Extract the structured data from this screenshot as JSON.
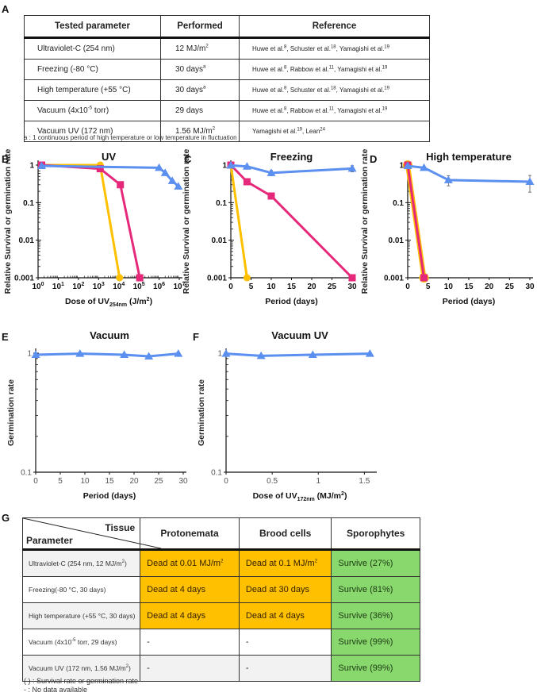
{
  "panels": {
    "A": "A",
    "B": "B",
    "C": "C",
    "D": "D",
    "E": "E",
    "F": "F",
    "G": "G"
  },
  "tableA": {
    "headers": [
      "Tested parameter",
      "Performed",
      "Reference"
    ],
    "rows": [
      {
        "param": "Ultraviolet-C  (254 nm)",
        "performed": "12 MJ/m",
        "performed_sup": "2",
        "refs": [
          [
            "Huwe et al.",
            "8"
          ],
          [
            "Schuster et al.",
            "18"
          ],
          [
            "Yamagishi et al.",
            "19"
          ]
        ]
      },
      {
        "param": "Freezing  (-80 °C)",
        "performed": "30 days",
        "performed_sup": "a",
        "refs": [
          [
            "Huwe et al.",
            "8"
          ],
          [
            "Rabbow et al.",
            "11"
          ],
          [
            "Yamagishi et al.",
            "19"
          ]
        ]
      },
      {
        "param": "High temperature  (+55 °C)",
        "performed": "30 days",
        "performed_sup": "a",
        "refs": [
          [
            "Huwe et al.",
            "8"
          ],
          [
            "Schuster et al.",
            "18"
          ],
          [
            "Yamagishi et al.",
            "19"
          ]
        ]
      },
      {
        "param_pre": "Vacuum  (4x10",
        "param_sup": "-5",
        "param_post": " torr)",
        "performed": "29 days",
        "performed_sup": "",
        "refs": [
          [
            "Huwe et al.",
            "8"
          ],
          [
            "Rabbow et al.",
            "11"
          ],
          [
            "Yamagishi et al.",
            "19"
          ]
        ]
      },
      {
        "param": "Vacuum  UV (172 nm)",
        "performed": "1.56 MJ/m",
        "performed_sup": "2",
        "refs": [
          [
            "Yamagishi et al.",
            "19"
          ],
          [
            "Lean",
            "24"
          ]
        ]
      }
    ],
    "footnote": "a :  1 continuous period of high temperature or low temperature in fluctuation"
  },
  "colors": {
    "protonemata": "#ffc000",
    "brood_cells": "#e5287a",
    "sporophytes": "#5b8ff0",
    "dead_cell": "#ffc000",
    "survive_cell": "#88d86e"
  },
  "chart_data": [
    {
      "id": "B",
      "type": "line",
      "title": "UV",
      "xlabel_pre": "Dose of UV",
      "xlabel_sub": "254nm",
      "xlabel_post": " (J/m",
      "xlabel_sup": "2",
      "xlabel_end": ")",
      "ylabel": "Relative Survival or germination rate",
      "xscale": "log",
      "yscale": "log",
      "xlim": [
        1,
        10000000
      ],
      "ylim": [
        0.001,
        1
      ],
      "xticks": [
        {
          "v": 1,
          "b": "10",
          "e": "0"
        },
        {
          "v": 10,
          "b": "10",
          "e": "1"
        },
        {
          "v": 100,
          "b": "10",
          "e": "2"
        },
        {
          "v": 1000,
          "b": "10",
          "e": "3"
        },
        {
          "v": 10000,
          "b": "10",
          "e": "4"
        },
        {
          "v": 100000,
          "b": "10",
          "e": "5"
        },
        {
          "v": 1000000,
          "b": "10",
          "e": "6"
        },
        {
          "v": 10000000,
          "b": "10",
          "e": "7"
        }
      ],
      "yticks": [
        {
          "v": 1,
          "l": "1"
        },
        {
          "v": 0.1,
          "l": "0.1"
        },
        {
          "v": 0.01,
          "l": "0.01"
        },
        {
          "v": 0.001,
          "l": "0.001"
        }
      ],
      "series": [
        {
          "name": "Protonemata",
          "marker": "circle",
          "x": [
            1.5,
            1200,
            11000
          ],
          "y": [
            1,
            1,
            0.001
          ]
        },
        {
          "name": "Brood cells",
          "marker": "square",
          "x": [
            1.5,
            1200,
            12000,
            110000
          ],
          "y": [
            1,
            0.8,
            0.3,
            0.001
          ]
        },
        {
          "name": "Sporophytes",
          "marker": "triangle",
          "x": [
            1.5,
            1000000,
            2000000,
            4500000,
            9000000
          ],
          "y": [
            0.95,
            0.85,
            0.62,
            0.38,
            0.27
          ]
        }
      ]
    },
    {
      "id": "C",
      "type": "line",
      "title": "Freezing",
      "xlabel": "Period (days)",
      "ylabel": "Relative Survival or germination rate",
      "xscale": "linear",
      "yscale": "log",
      "xlim": [
        0,
        30
      ],
      "ylim": [
        0.001,
        1
      ],
      "xticks": [
        {
          "v": 0,
          "l": "0"
        },
        {
          "v": 5,
          "l": "5"
        },
        {
          "v": 10,
          "l": "10"
        },
        {
          "v": 15,
          "l": "15"
        },
        {
          "v": 20,
          "l": "20"
        },
        {
          "v": 25,
          "l": "25"
        },
        {
          "v": 30,
          "l": "30"
        }
      ],
      "yticks": [
        {
          "v": 1,
          "l": "1"
        },
        {
          "v": 0.1,
          "l": "0.1"
        },
        {
          "v": 0.01,
          "l": "0.01"
        },
        {
          "v": 0.001,
          "l": "0.001"
        }
      ],
      "series": [
        {
          "name": "Protonemata",
          "marker": "circle",
          "x": [
            0,
            4
          ],
          "y": [
            1,
            0.001
          ]
        },
        {
          "name": "Brood cells",
          "marker": "square",
          "x": [
            0,
            4,
            10,
            30
          ],
          "y": [
            1,
            0.36,
            0.15,
            0.001
          ]
        },
        {
          "name": "Sporophytes",
          "marker": "triangle",
          "x": [
            0,
            4,
            10,
            30
          ],
          "y": [
            0.98,
            0.92,
            0.62,
            0.81
          ],
          "err": [
            0,
            0.08,
            0.1,
            0.15
          ]
        }
      ]
    },
    {
      "id": "D",
      "type": "line",
      "title": "High temperature",
      "xlabel": "Period (days)",
      "ylabel": "Relative Survival or germination rate",
      "xscale": "linear",
      "yscale": "log",
      "xlim": [
        0,
        30
      ],
      "ylim": [
        0.001,
        1
      ],
      "xticks": [
        {
          "v": 0,
          "l": "0"
        },
        {
          "v": 5,
          "l": "5"
        },
        {
          "v": 10,
          "l": "10"
        },
        {
          "v": 15,
          "l": "15"
        },
        {
          "v": 20,
          "l": "20"
        },
        {
          "v": 25,
          "l": "25"
        },
        {
          "v": 30,
          "l": "30"
        }
      ],
      "yticks": [
        {
          "v": 1,
          "l": "1"
        },
        {
          "v": 0.1,
          "l": "0.1"
        },
        {
          "v": 0.01,
          "l": "0.01"
        },
        {
          "v": 0.001,
          "l": "0.001"
        }
      ],
      "series": [
        {
          "name": "Protonemata",
          "marker": "circle",
          "x": [
            0,
            4
          ],
          "y": [
            1,
            0.001
          ]
        },
        {
          "name": "Brood cells",
          "marker": "square",
          "x": [
            0,
            4
          ],
          "y": [
            1,
            0.001
          ]
        },
        {
          "name": "Sporophytes",
          "marker": "triangle",
          "x": [
            0,
            4,
            10,
            30
          ],
          "y": [
            0.95,
            0.85,
            0.4,
            0.36
          ],
          "err": [
            0,
            0.05,
            0.12,
            0.17
          ]
        }
      ]
    },
    {
      "id": "E",
      "type": "line",
      "title": "Vacuum",
      "xlabel": "Period (days)",
      "ylabel": "Germination rate",
      "xscale": "linear",
      "yscale": "log",
      "xlim": [
        0,
        30
      ],
      "ylim": [
        0.1,
        1
      ],
      "xticks": [
        {
          "v": 0,
          "l": "0"
        },
        {
          "v": 5,
          "l": "5"
        },
        {
          "v": 10,
          "l": "10"
        },
        {
          "v": 15,
          "l": "15"
        },
        {
          "v": 20,
          "l": "20"
        },
        {
          "v": 25,
          "l": "25"
        },
        {
          "v": 30,
          "l": "30"
        }
      ],
      "yticks": [
        {
          "v": 1,
          "l": "1"
        },
        {
          "v": 0.1,
          "l": "0.1"
        }
      ],
      "series": [
        {
          "name": "Sporophytes",
          "marker": "triangle",
          "x": [
            0,
            9,
            18,
            23,
            29
          ],
          "y": [
            0.97,
            0.99,
            0.97,
            0.94,
            0.99
          ]
        }
      ]
    },
    {
      "id": "F",
      "type": "line",
      "title": "Vacuum UV",
      "xlabel_pre": "Dose of UV",
      "xlabel_sub": "172nm",
      "xlabel_post": " (MJ/m",
      "xlabel_sup": "2",
      "xlabel_end": ")",
      "ylabel": "Germination rate",
      "xscale": "linear",
      "yscale": "log",
      "xlim": [
        0,
        1.6
      ],
      "ylim": [
        0.1,
        1
      ],
      "xticks": [
        {
          "v": 0,
          "l": "0"
        },
        {
          "v": 0.5,
          "l": "0.5"
        },
        {
          "v": 1,
          "l": "1"
        },
        {
          "v": 1.5,
          "l": "1.5"
        }
      ],
      "yticks": [
        {
          "v": 1,
          "l": "1"
        },
        {
          "v": 0.1,
          "l": "0.1"
        }
      ],
      "series": [
        {
          "name": "Sporophytes",
          "marker": "triangle",
          "x": [
            0,
            0.38,
            0.94,
            1.56
          ],
          "y": [
            0.99,
            0.95,
            0.97,
            0.99
          ]
        }
      ]
    }
  ],
  "tableG": {
    "corner_top": "Tissue",
    "corner_bottom": "Parameter",
    "headers": [
      "Protonemata",
      "Brood cells",
      "Sporophytes"
    ],
    "rows": [
      {
        "param_pre": "Ultraviolet-C (254 nm, 12 MJ/m",
        "param_sup": "2",
        "param_post": ")",
        "protonemata": "Dead at 0.01 MJ/m",
        "protonemata_sup": "2",
        "brood": "Dead at 0.1 MJ/m",
        "brood_sup": "2",
        "sporo": "Survive (27%)",
        "p_state": "dead",
        "b_state": "dead"
      },
      {
        "param_pre": "Freezing(-80 °C, 30 days)",
        "param_sup": "",
        "param_post": "",
        "protonemata": "Dead at 4 days",
        "protonemata_sup": "",
        "brood": "Dead at 30 days",
        "brood_sup": "",
        "sporo": "Survive (81%)",
        "p_state": "dead",
        "b_state": "dead"
      },
      {
        "param_pre": "High temperature (+55 °C, 30 days)",
        "param_sup": "",
        "param_post": "",
        "protonemata": "Dead at 4 days",
        "protonemata_sup": "",
        "brood": "Dead at 4 days",
        "brood_sup": "",
        "sporo": "Survive (36%)",
        "p_state": "dead",
        "b_state": "dead"
      },
      {
        "param_pre": "Vacuum (4x10",
        "param_sup": "-5",
        "param_post": " torr, 29 days)",
        "protonemata": "-",
        "protonemata_sup": "",
        "brood": "-",
        "brood_sup": "",
        "sporo": "Survive (99%)",
        "p_state": "na",
        "b_state": "na"
      },
      {
        "param_pre": "Vacuum UV (172 nm, 1.56 MJ/m",
        "param_sup": "2",
        "param_post": ")",
        "protonemata": "-",
        "protonemata_sup": "",
        "brood": "-",
        "brood_sup": "",
        "sporo": "Survive (99%)",
        "p_state": "na",
        "b_state": "na"
      }
    ],
    "legend": [
      "(  )  : Survival  rate  or  germination  rate",
      "-     : No data available"
    ]
  }
}
